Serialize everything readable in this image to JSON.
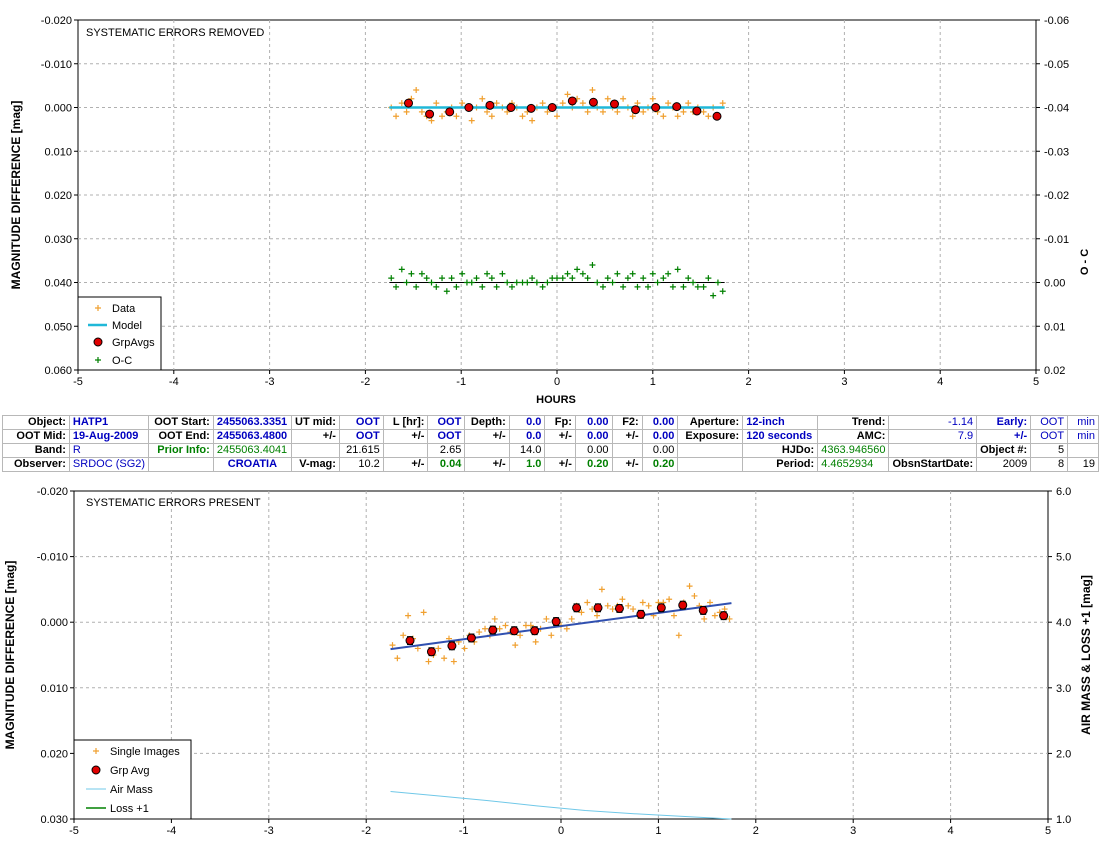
{
  "chart_data": [
    {
      "type": "scatter",
      "title": "SYSTEMATIC ERRORS REMOVED",
      "xlabel": "HOURS",
      "ylabel": "MAGNITUDE DIFFERENCE [mag]",
      "y2label": "O - C",
      "xlim": [
        -5,
        5
      ],
      "ylim": [
        -0.02,
        0.06
      ],
      "y2lim": [
        -0.06,
        0.02
      ],
      "x_ticks": [
        "-5",
        "-4",
        "-3",
        "-2",
        "-1",
        "0",
        "1",
        "2",
        "3",
        "4",
        "5"
      ],
      "y_ticks": [
        "-0.020",
        "-0.010",
        "0.000",
        "0.010",
        "0.020",
        "0.030",
        "0.040",
        "0.050",
        "0.060"
      ],
      "y2_ticks": [
        "-0.06",
        "-0.05",
        "-0.04",
        "-0.03",
        "-0.02",
        "-0.01",
        "0.00",
        "0.01",
        "0.02"
      ],
      "grid": true,
      "legend_position": "bottom-left",
      "legend": [
        "Data",
        "Model",
        "GrpAvgs",
        "O-C"
      ],
      "colors": {
        "data": "#f0a030",
        "model": "#20b8d8",
        "grpavg": "#e00000",
        "oc": "#008000",
        "zero_line": "#000000"
      },
      "series": [
        {
          "name": "Data",
          "x": [
            -1.73,
            -1.68,
            -1.62,
            -1.57,
            -1.52,
            -1.47,
            -1.41,
            -1.36,
            -1.31,
            -1.26,
            -1.2,
            -1.15,
            -1.1,
            -1.05,
            -0.99,
            -0.94,
            -0.89,
            -0.84,
            -0.78,
            -0.73,
            -0.68,
            -0.63,
            -0.57,
            -0.52,
            -0.47,
            -0.42,
            -0.36,
            -0.31,
            -0.26,
            -0.21,
            -0.15,
            -0.1,
            -0.05,
            0.0,
            0.06,
            0.11,
            0.16,
            0.21,
            0.27,
            0.32,
            0.37,
            0.42,
            0.48,
            0.53,
            0.58,
            0.63,
            0.69,
            0.74,
            0.79,
            0.84,
            0.9,
            0.95,
            1.0,
            1.05,
            1.11,
            1.16,
            1.21,
            1.26,
            1.32,
            1.37,
            1.42,
            1.47,
            1.53,
            1.58,
            1.63,
            1.68,
            1.73
          ],
          "y": [
            0.0,
            0.002,
            -0.001,
            0.001,
            -0.002,
            -0.004,
            0.001,
            0.002,
            0.003,
            -0.001,
            0.002,
            0.001,
            0.0,
            0.002,
            -0.001,
            0.0,
            0.003,
            0.0,
            -0.002,
            0.001,
            0.002,
            -0.001,
            0.0,
            0.001,
            -0.001,
            0.0,
            0.002,
            0.001,
            0.003,
            0.0,
            -0.001,
            0.001,
            0.0,
            0.002,
            -0.001,
            -0.003,
            0.0,
            -0.002,
            -0.001,
            0.001,
            -0.004,
            0.0,
            0.001,
            -0.002,
            0.0,
            0.001,
            -0.002,
            0.0,
            0.002,
            -0.001,
            0.001,
            0.0,
            -0.002,
            0.001,
            0.002,
            -0.001,
            0.0,
            0.002,
            0.001,
            -0.001,
            0.001,
            0.0,
            0.001,
            0.002,
            0.0,
            0.002,
            -0.001
          ]
        },
        {
          "name": "Model",
          "x": [
            -1.75,
            -1.0,
            -0.5,
            0.0,
            0.5,
            1.0,
            1.75
          ],
          "y": [
            0.0,
            0.0,
            0.0,
            0.0,
            0.0,
            0.0,
            0.0
          ]
        },
        {
          "name": "GrpAvgs",
          "x": [
            -1.55,
            -1.33,
            -1.12,
            -0.92,
            -0.7,
            -0.48,
            -0.27,
            -0.05,
            0.16,
            0.38,
            0.6,
            0.82,
            1.03,
            1.25,
            1.46,
            1.67
          ],
          "y": [
            -0.001,
            0.0015,
            0.001,
            0.0,
            -0.0005,
            0.0,
            0.0002,
            0.0,
            -0.0015,
            -0.0012,
            -0.0008,
            0.0005,
            0.0,
            -0.0002,
            0.0008,
            0.002
          ],
          "err": [
            0.0006,
            0.0006,
            0.0006,
            0.0006,
            0.0006,
            0.0006,
            0.0006,
            0.0006,
            0.0006,
            0.0006,
            0.0006,
            0.0006,
            0.0006,
            0.0006,
            0.0006,
            0.0006
          ]
        },
        {
          "name": "O-C",
          "x": [
            -1.73,
            -1.68,
            -1.62,
            -1.57,
            -1.52,
            -1.47,
            -1.41,
            -1.36,
            -1.31,
            -1.26,
            -1.2,
            -1.15,
            -1.1,
            -1.05,
            -0.99,
            -0.94,
            -0.89,
            -0.84,
            -0.78,
            -0.73,
            -0.68,
            -0.63,
            -0.57,
            -0.52,
            -0.47,
            -0.42,
            -0.36,
            -0.31,
            -0.26,
            -0.21,
            -0.15,
            -0.1,
            -0.05,
            0.0,
            0.06,
            0.11,
            0.16,
            0.21,
            0.27,
            0.32,
            0.37,
            0.42,
            0.48,
            0.53,
            0.58,
            0.63,
            0.69,
            0.74,
            0.79,
            0.84,
            0.9,
            0.95,
            1.0,
            1.05,
            1.11,
            1.16,
            1.21,
            1.26,
            1.32,
            1.37,
            1.42,
            1.47,
            1.53,
            1.58,
            1.63,
            1.68,
            1.73
          ],
          "y": [
            -0.001,
            0.001,
            -0.003,
            0.0,
            -0.002,
            0.001,
            -0.002,
            -0.001,
            0.0,
            0.001,
            -0.001,
            0.002,
            -0.001,
            0.001,
            -0.002,
            0.0,
            0.0,
            -0.001,
            0.001,
            -0.002,
            -0.001,
            0.001,
            -0.002,
            0.0,
            0.001,
            0.0,
            0.0,
            0.0,
            -0.001,
            0.0,
            0.001,
            0.0,
            -0.001,
            -0.001,
            -0.001,
            -0.002,
            -0.001,
            -0.003,
            -0.002,
            -0.001,
            -0.004,
            0.0,
            0.001,
            -0.001,
            0.0,
            -0.002,
            0.001,
            -0.001,
            -0.002,
            0.001,
            -0.001,
            0.001,
            -0.002,
            0.0,
            -0.001,
            -0.002,
            0.001,
            -0.003,
            0.001,
            -0.001,
            0.0,
            0.001,
            0.001,
            -0.001,
            0.003,
            0.0,
            0.002
          ]
        },
        {
          "name": "O-C zero line",
          "x": [
            -1.75,
            1.75
          ],
          "y": [
            0.0,
            0.0
          ]
        }
      ]
    },
    {
      "type": "scatter",
      "title": "SYSTEMATIC ERRORS PRESENT",
      "xlabel": "",
      "ylabel": "MAGNITUDE DIFFERENCE [mag]",
      "y2label": "AIR MASS & LOSS +1 [mag]",
      "xlim": [
        -5,
        5
      ],
      "ylim": [
        -0.02,
        0.03
      ],
      "y2lim": [
        1.0,
        6.0
      ],
      "x_ticks": [
        "-5",
        "-4",
        "-3",
        "-2",
        "-1",
        "0",
        "1",
        "2",
        "3",
        "4",
        "5"
      ],
      "y_ticks": [
        "-0.020",
        "-0.010",
        "0.000",
        "0.010",
        "0.020",
        "0.030"
      ],
      "y2_ticks": [
        "6.0",
        "5.0",
        "4.0",
        "3.0",
        "2.0",
        "1.0"
      ],
      "grid": true,
      "legend_position": "bottom-left",
      "legend": [
        "Single Images",
        "Grp Avg",
        "Air Mass",
        "Loss +1"
      ],
      "colors": {
        "single": "#f0a030",
        "grpavg": "#e00000",
        "airmass": "#70c8e8",
        "loss": "#008000",
        "trend": "#3050b0"
      },
      "series": [
        {
          "name": "Single Images",
          "x": [
            -1.73,
            -1.68,
            -1.62,
            -1.57,
            -1.52,
            -1.47,
            -1.41,
            -1.36,
            -1.31,
            -1.26,
            -1.2,
            -1.15,
            -1.1,
            -1.05,
            -0.99,
            -0.94,
            -0.89,
            -0.84,
            -0.78,
            -0.73,
            -0.68,
            -0.63,
            -0.57,
            -0.52,
            -0.47,
            -0.42,
            -0.36,
            -0.31,
            -0.26,
            -0.21,
            -0.15,
            -0.1,
            -0.05,
            0.0,
            0.06,
            0.11,
            0.16,
            0.21,
            0.27,
            0.32,
            0.37,
            0.42,
            0.48,
            0.53,
            0.58,
            0.63,
            0.69,
            0.74,
            0.79,
            0.84,
            0.9,
            0.95,
            1.0,
            1.05,
            1.11,
            1.16,
            1.21,
            1.26,
            1.32,
            1.37,
            1.42,
            1.47,
            1.53,
            1.58,
            1.63,
            1.68,
            1.73
          ],
          "y": [
            0.0035,
            0.0055,
            0.002,
            -0.001,
            0.0025,
            0.004,
            -0.0015,
            0.006,
            0.005,
            0.004,
            0.0055,
            0.0025,
            0.006,
            0.003,
            0.004,
            0.002,
            0.003,
            0.0015,
            0.001,
            0.002,
            -0.0005,
            0.001,
            0.0005,
            0.0015,
            0.0035,
            0.002,
            0.0005,
            0.0005,
            0.003,
            0.001,
            -0.0005,
            0.002,
            0.0,
            0.0005,
            0.001,
            -0.0005,
            -0.0025,
            -0.0015,
            -0.003,
            -0.002,
            -0.001,
            -0.005,
            -0.0025,
            -0.002,
            -0.0025,
            -0.0035,
            -0.0025,
            -0.002,
            -0.001,
            -0.003,
            -0.0025,
            -0.001,
            -0.003,
            -0.003,
            -0.0035,
            -0.001,
            0.002,
            -0.003,
            -0.0055,
            -0.004,
            -0.0025,
            -0.0005,
            -0.003,
            -0.001,
            -0.0015,
            -0.002,
            -0.0005
          ]
        },
        {
          "name": "Grp Avg",
          "x": [
            -1.55,
            -1.33,
            -1.12,
            -0.92,
            -0.7,
            -0.48,
            -0.27,
            -0.05,
            0.16,
            0.38,
            0.6,
            0.82,
            1.03,
            1.25,
            1.46,
            1.67
          ],
          "y": [
            0.0028,
            0.0045,
            0.0036,
            0.0024,
            0.0012,
            0.0013,
            0.0013,
            -0.0001,
            -0.0022,
            -0.0022,
            -0.0021,
            -0.0012,
            -0.0022,
            -0.0026,
            -0.0018,
            -0.001
          ],
          "err": [
            0.0006,
            0.0006,
            0.0006,
            0.0006,
            0.0006,
            0.0006,
            0.0006,
            0.0006,
            0.0006,
            0.0006,
            0.0006,
            0.0006,
            0.0006,
            0.0006,
            0.0006,
            0.0006
          ]
        },
        {
          "name": "Trend",
          "x": [
            -1.75,
            1.75
          ],
          "y": [
            0.0041,
            -0.0029
          ]
        },
        {
          "name": "Air Mass",
          "x": [
            -1.75,
            -1.25,
            -0.75,
            -0.25,
            0.25,
            0.75,
            1.25,
            1.75
          ],
          "y": [
            1.42,
            1.35,
            1.28,
            1.2,
            1.13,
            1.08,
            1.04,
            1.0
          ]
        }
      ]
    }
  ],
  "info_table": {
    "rows": [
      [
        "Object:",
        "HATP1",
        "OOT Start:",
        "2455063.3351",
        "UT mid:",
        "OOT",
        "L [hr]:",
        "OOT",
        "Depth:",
        "0.0",
        "Fp:",
        "0.00",
        "F2:",
        "0.00",
        "Aperture:",
        "12-inch",
        "Trend:",
        "-1.14",
        "Early:",
        "OOT",
        "min"
      ],
      [
        "OOT Mid:",
        "19-Aug-2009",
        "OOT End:",
        "2455063.4800",
        "+/-",
        "OOT",
        "+/-",
        "OOT",
        "+/-",
        "0.0",
        "+/-",
        "0.00",
        "+/-",
        "0.00",
        "Exposure:",
        "120 seconds",
        "AMC:",
        "7.9",
        "+/-",
        "OOT",
        "min"
      ],
      [
        "Band:",
        "R",
        "Prior Info:",
        "2455063.4041",
        "",
        "21.615",
        "",
        "2.65",
        "",
        "14.0",
        "",
        "0.00",
        "",
        "0.00",
        "",
        "HJDo:",
        "4363.946560",
        "",
        "Object #:",
        "5",
        ""
      ],
      [
        "Observer:",
        "SRDOC (SG2)",
        "",
        "CROATIA",
        "V-mag:",
        "10.2",
        "+/-",
        "0.04",
        "+/-",
        "1.0",
        "+/-",
        "0.20",
        "+/-",
        "0.20",
        "",
        "Period:",
        "4.4652934",
        "ObsnStartDate:",
        "2009",
        "8",
        "19"
      ]
    ]
  }
}
